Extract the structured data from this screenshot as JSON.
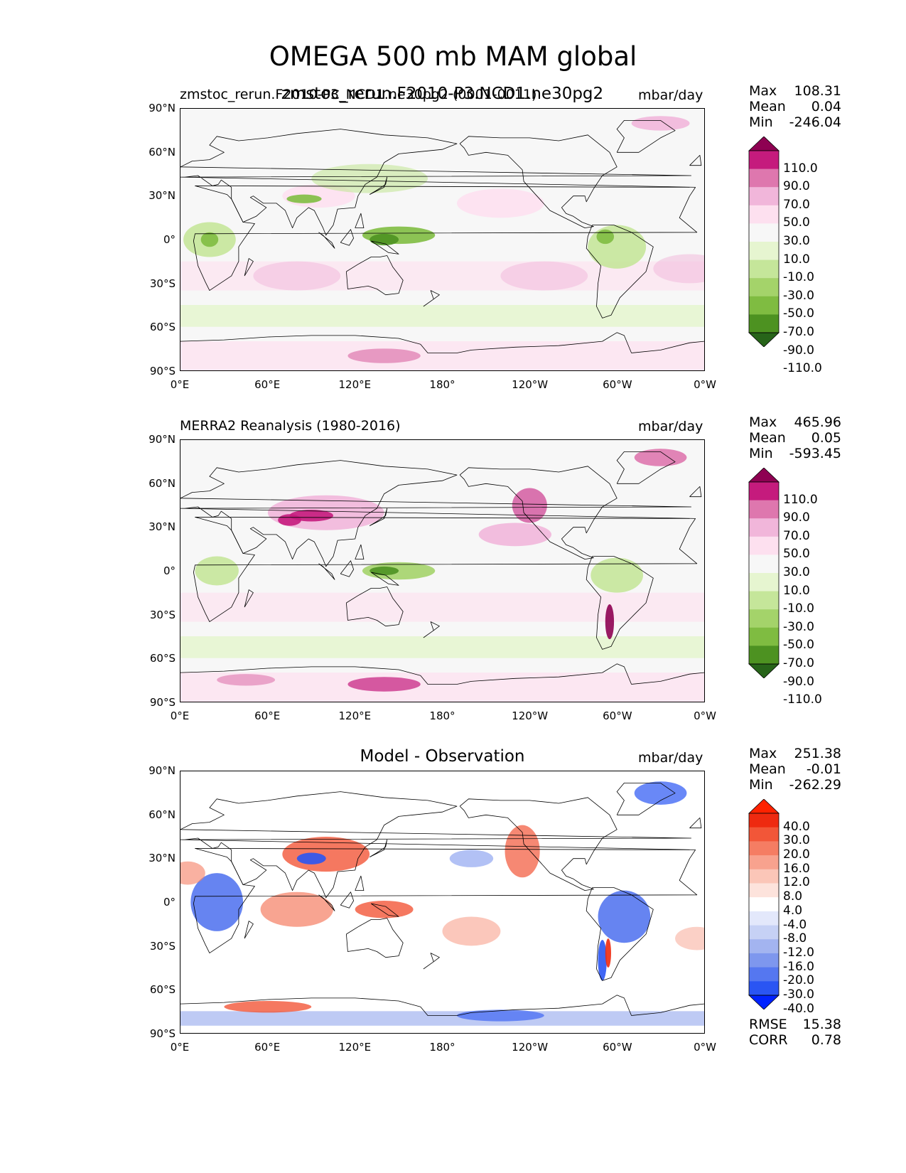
{
  "figure": {
    "title": "OMEGA 500 mb MAM global"
  },
  "panels": [
    {
      "id": "test",
      "left_title": "zmstoc_rerun.F2010-P3_NCD1.ne30pg2 (0001-0011)",
      "center_title": "zmstoc_rerun.F2010-P3.NCD1.ne30pg2",
      "units": "mbar/day",
      "stats": {
        "max_label": "Max",
        "max": "108.31",
        "mean_label": "Mean",
        "mean": "0.04",
        "min_label": "Min",
        "min": "-246.04"
      },
      "colorbar_labels": [
        "110.0",
        "90.0",
        "70.0",
        "50.0",
        "30.0",
        "10.0",
        "-10.0",
        "-30.0",
        "-50.0",
        "-70.0",
        "-90.0",
        "-110.0"
      ]
    },
    {
      "id": "ref",
      "left_title": "MERRA2 Reanalysis (1980-2016)",
      "center_title": "",
      "units": "mbar/day",
      "stats": {
        "max_label": "Max",
        "max": "465.96",
        "mean_label": "Mean",
        "mean": "0.05",
        "min_label": "Min",
        "min": "-593.45"
      },
      "colorbar_labels": [
        "110.0",
        "90.0",
        "70.0",
        "50.0",
        "30.0",
        "10.0",
        "-10.0",
        "-30.0",
        "-50.0",
        "-70.0",
        "-90.0",
        "-110.0"
      ]
    },
    {
      "id": "diff",
      "left_title": "",
      "center_title": "Model - Observation",
      "units": "mbar/day",
      "stats": {
        "max_label": "Max",
        "max": "251.38",
        "mean_label": "Mean",
        "mean": "-0.01",
        "min_label": "Min",
        "min": "-262.29"
      },
      "colorbar_labels": [
        "40.0",
        "30.0",
        "20.0",
        "16.0",
        "12.0",
        "8.0",
        "4.0",
        "-4.0",
        "-8.0",
        "-12.0",
        "-16.0",
        "-20.0",
        "-30.0",
        "-40.0"
      ],
      "metrics": {
        "rmse_label": "RMSE",
        "rmse": "15.38",
        "corr_label": "CORR",
        "corr": "0.78"
      }
    }
  ],
  "axes": {
    "lat_ticks": [
      "90°N",
      "60°N",
      "30°N",
      "0°",
      "30°S",
      "60°S",
      "90°S"
    ],
    "lon_ticks": [
      "0°E",
      "60°E",
      "120°E",
      "180°",
      "120°W",
      "60°W",
      "0°W"
    ]
  },
  "chart_data": [
    {
      "type": "heatmap",
      "title": "zmstoc_rerun.F2010-P3.NCD1.ne30pg2",
      "variable": "OMEGA 500 mb",
      "season": "MAM",
      "units": "mbar/day",
      "xlabel": "",
      "ylabel": "",
      "xlim": [
        0,
        360
      ],
      "ylim": [
        -90,
        90
      ],
      "levels": [
        -110,
        -90,
        -70,
        -50,
        -30,
        -10,
        10,
        30,
        50,
        70,
        90,
        110
      ],
      "max": 108.31,
      "mean": 0.04,
      "min": -246.04,
      "colormap": "PiYG_r"
    },
    {
      "type": "heatmap",
      "title": "MERRA2 Reanalysis (1980-2016)",
      "variable": "OMEGA 500 mb",
      "season": "MAM",
      "units": "mbar/day",
      "xlim": [
        0,
        360
      ],
      "ylim": [
        -90,
        90
      ],
      "levels": [
        -110,
        -90,
        -70,
        -50,
        -30,
        -10,
        10,
        30,
        50,
        70,
        90,
        110
      ],
      "max": 465.96,
      "mean": 0.05,
      "min": -593.45,
      "colormap": "PiYG_r"
    },
    {
      "type": "heatmap",
      "title": "Model - Observation",
      "variable": "OMEGA 500 mb",
      "season": "MAM",
      "units": "mbar/day",
      "xlim": [
        0,
        360
      ],
      "ylim": [
        -90,
        90
      ],
      "levels": [
        -40,
        -30,
        -20,
        -16,
        -12,
        -8,
        -4,
        4,
        8,
        12,
        16,
        20,
        30,
        40
      ],
      "max": 251.38,
      "mean": -0.01,
      "min": -262.29,
      "rmse": 15.38,
      "corr": 0.78,
      "colormap": "bwr"
    }
  ],
  "colors": {
    "piyg": [
      "#276419",
      "#4d9221",
      "#7fbc41",
      "#a4d36a",
      "#c5e69a",
      "#e6f5d0",
      "#f7f7f7",
      "#fde0ef",
      "#f1b6da",
      "#de77ae",
      "#c51b7d",
      "#8e0152"
    ],
    "bwr": [
      "#0022ff",
      "#2a55f3",
      "#5577f0",
      "#7e97ee",
      "#a3b4f0",
      "#c6d1f5",
      "#e3e8fb",
      "#ffffff",
      "#fde3dc",
      "#fbc6b8",
      "#f8a28e",
      "#f57d63",
      "#f25638",
      "#ee2a10",
      "#ff2200"
    ]
  }
}
